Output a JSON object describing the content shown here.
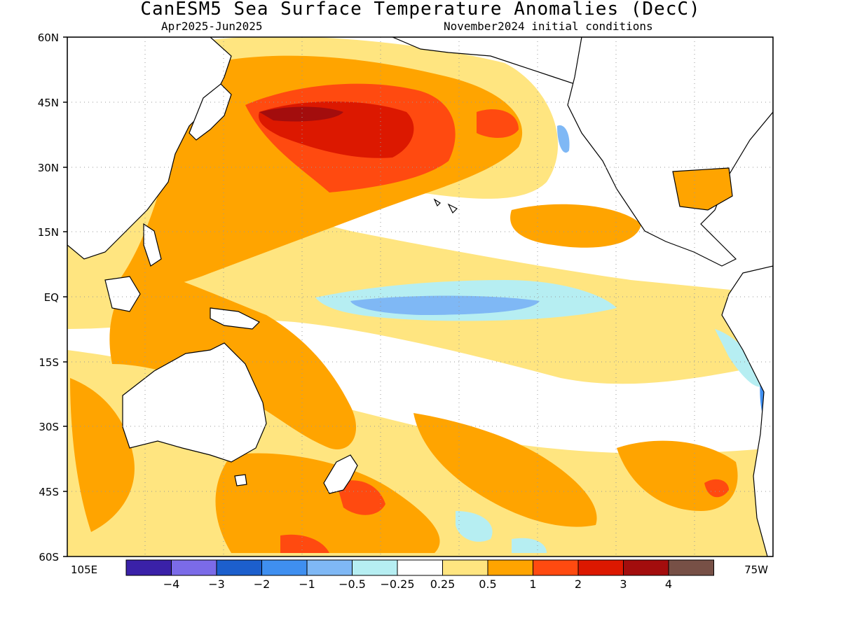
{
  "title": "CanESM5 Sea Surface Temperature Anomalies (DecC)",
  "subtitle_left": "Apr2025-Jun2025",
  "subtitle_right": "November2024 initial conditions",
  "lat_labels": [
    "60N",
    "45N",
    "30N",
    "15N",
    "EQ",
    "15S",
    "30S",
    "45S",
    "60S"
  ],
  "lon_labels": {
    "left": "105E",
    "right": "75W"
  },
  "colorbar": {
    "colors": [
      "#3a21a8",
      "#7b6be8",
      "#1c5fcd",
      "#3f8ff0",
      "#7fb8f5",
      "#b6eef2",
      "#ffffff",
      "#ffe580",
      "#ffa400",
      "#ff4a10",
      "#dc1800",
      "#a30d0d",
      "#775046"
    ],
    "tick_labels": [
      "-4",
      "-3",
      "-2",
      "-1",
      "-0.5",
      "-0.25",
      "0.25",
      "0.5",
      "1",
      "2",
      "3",
      "4"
    ]
  },
  "map_colors": {
    "land": "#ffffff",
    "coast": "#000000",
    "grid": "#999999"
  }
}
